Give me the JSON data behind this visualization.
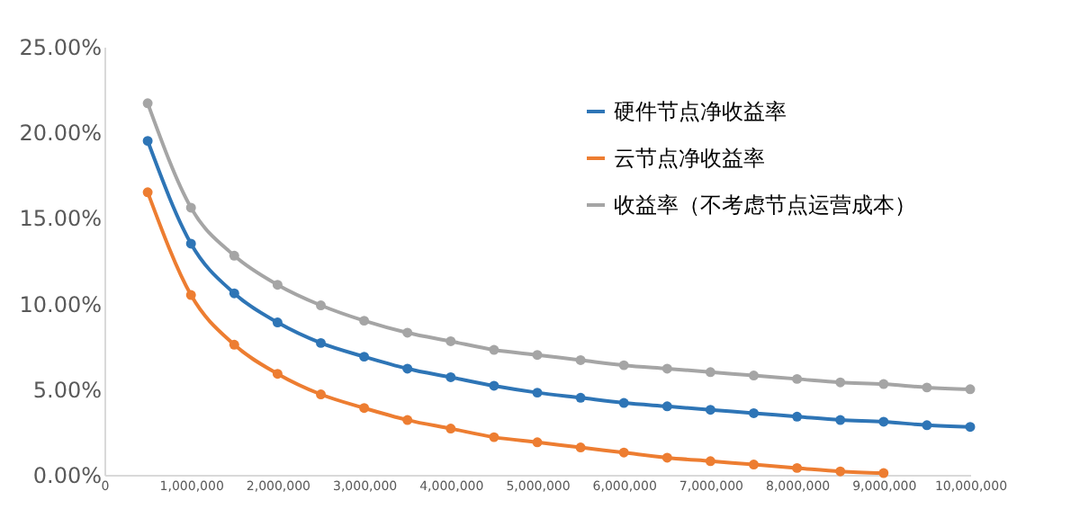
{
  "chart_data": {
    "type": "line",
    "x": [
      500000,
      1000000,
      1500000,
      2000000,
      2500000,
      3000000,
      3500000,
      4000000,
      4500000,
      5000000,
      5500000,
      6000000,
      6500000,
      7000000,
      7500000,
      8000000,
      8500000,
      9000000,
      9500000,
      10000000
    ],
    "series": [
      {
        "name": "硬件节点净收益率",
        "color": "#2e75b6",
        "values": [
          19.5,
          13.5,
          10.6,
          8.9,
          7.7,
          6.9,
          6.2,
          5.7,
          5.2,
          4.8,
          4.5,
          4.2,
          4.0,
          3.8,
          3.6,
          3.4,
          3.2,
          3.1,
          2.9,
          2.8
        ]
      },
      {
        "name": "云节点净收益率",
        "color": "#ed7d31",
        "values": [
          16.5,
          10.5,
          7.6,
          5.9,
          4.7,
          3.9,
          3.2,
          2.7,
          2.2,
          1.9,
          1.6,
          1.3,
          1.0,
          0.8,
          0.6,
          0.4,
          0.2,
          0.1,
          null,
          null
        ]
      },
      {
        "name": "收益率（不考虑节点运营成本）",
        "color": "#a5a5a5",
        "values": [
          21.7,
          15.6,
          12.8,
          11.1,
          9.9,
          9.0,
          8.3,
          7.8,
          7.3,
          7.0,
          6.7,
          6.4,
          6.2,
          6.0,
          5.8,
          5.6,
          5.4,
          5.3,
          5.1,
          5.0
        ]
      }
    ],
    "xlim": [
      0,
      10000000
    ],
    "xticks": [
      0,
      {
        "value": 1000000,
        "label": "1,000,000"
      },
      {
        "value": 2000000,
        "label": "2,000,000"
      },
      {
        "value": 3000000,
        "label": "3,000,000"
      },
      {
        "value": 4000000,
        "label": "4,000,000"
      },
      {
        "value": 5000000,
        "label": "5,000,000"
      },
      {
        "value": 6000000,
        "label": "6,000,000"
      },
      {
        "value": 7000000,
        "label": "7,000,000"
      },
      {
        "value": 8000000,
        "label": "8,000,000"
      },
      {
        "value": 9000000,
        "label": "9,000,000"
      },
      {
        "value": 10000000,
        "label": "10,000,000"
      }
    ],
    "ylim": [
      0,
      25
    ],
    "yticks": [
      {
        "value": 0,
        "label": "0.00%"
      },
      {
        "value": 5,
        "label": "5.00%"
      },
      {
        "value": 10,
        "label": "10.00%"
      },
      {
        "value": 15,
        "label": "15.00%"
      },
      {
        "value": 20,
        "label": "20.00%"
      },
      {
        "value": 25,
        "label": "25.00%"
      }
    ],
    "grid": false,
    "legend": "top right",
    "marker": "circle",
    "line_style": "solid"
  }
}
